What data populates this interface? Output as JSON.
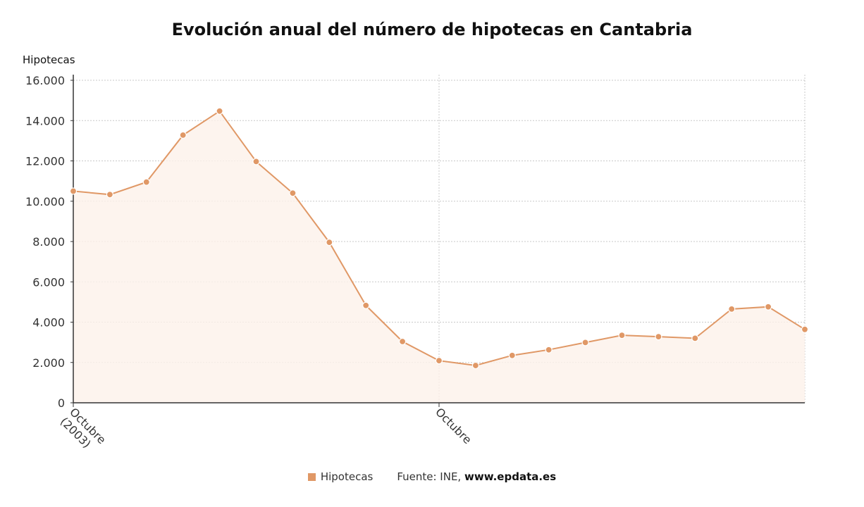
{
  "chart_data": {
    "type": "area",
    "title": "Evolución anual del número de hipotecas en Cantabria",
    "ylabel": "Hipotecas",
    "xlabel": "",
    "ylim": [
      0,
      16000
    ],
    "yticks": [
      "0",
      "2.000",
      "4.000",
      "6.000",
      "8.000",
      "10.000",
      "12.000",
      "14.000",
      "16.000"
    ],
    "x_tick_labels": [
      {
        "index": 0,
        "lines": [
          "Octubre",
          "(2003)"
        ]
      },
      {
        "index": 10,
        "lines": [
          "Octubre"
        ]
      }
    ],
    "grid": true,
    "legend_placement": "bottom-center",
    "series": [
      {
        "name": "Hipotecas",
        "color": "#e09866",
        "values": [
          10500,
          10330,
          10950,
          13280,
          14470,
          11970,
          10400,
          7960,
          4830,
          3040,
          2090,
          1850,
          2350,
          2630,
          2990,
          3350,
          3280,
          3200,
          4650,
          4760,
          3640
        ]
      }
    ],
    "source": {
      "label": "Fuente: INE,",
      "site": "www.epdata.es"
    }
  }
}
